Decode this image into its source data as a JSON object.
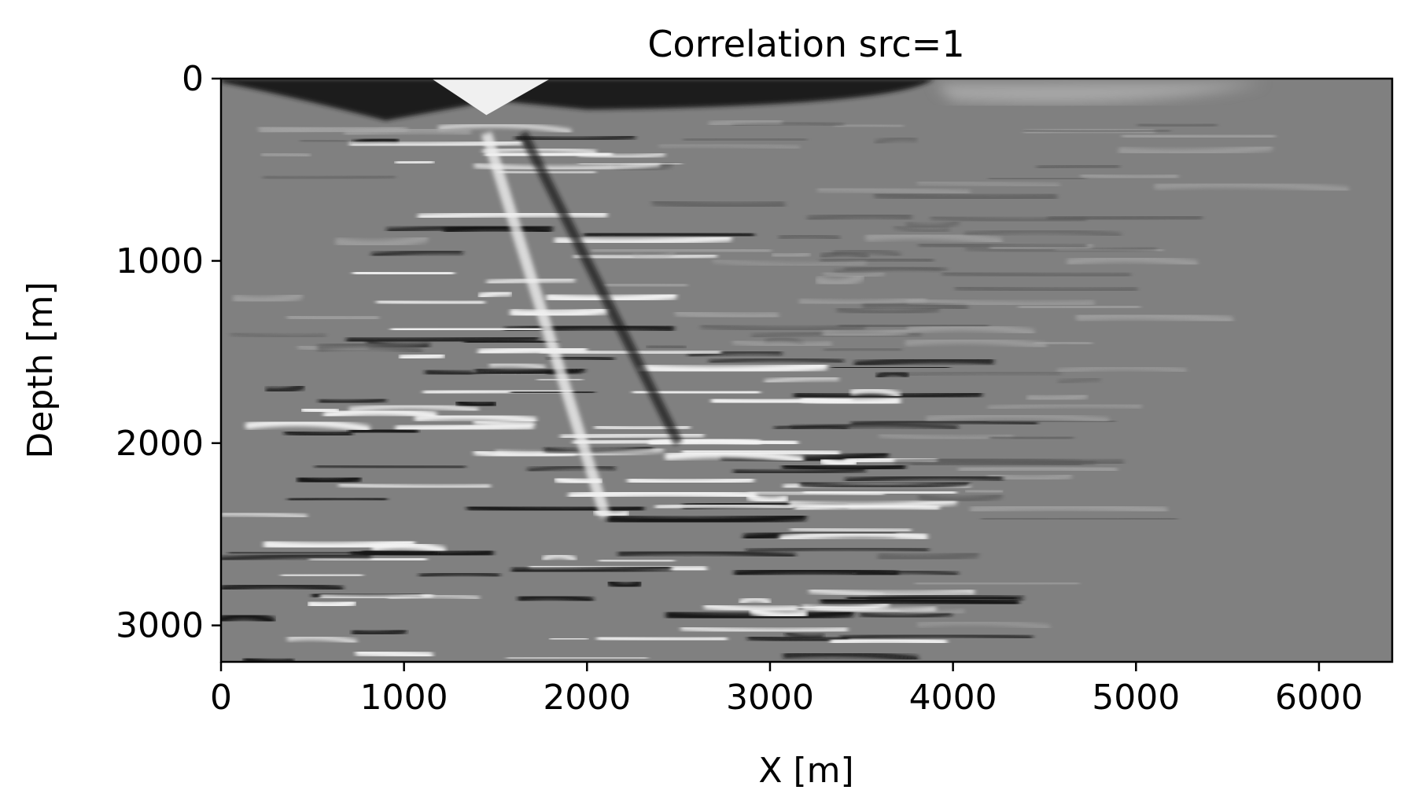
{
  "chart_data": {
    "type": "heatmap",
    "title": "Correlation src=1",
    "xlabel": "X [m]",
    "ylabel": "Depth [m]",
    "xlim": [
      0,
      6400
    ],
    "ylim": [
      3200,
      0
    ],
    "xticks": [
      0,
      1000,
      2000,
      3000,
      4000,
      5000,
      6000
    ],
    "xtick_labels": [
      "0",
      "1000",
      "2000",
      "3000",
      "4000",
      "5000",
      "6000"
    ],
    "yticks": [
      0,
      1000,
      2000,
      3000
    ],
    "ytick_labels": [
      "0",
      "1000",
      "2000",
      "3000"
    ],
    "colormap": "gray",
    "background_value_color": "#808080",
    "grid": false,
    "legend": "none"
  }
}
